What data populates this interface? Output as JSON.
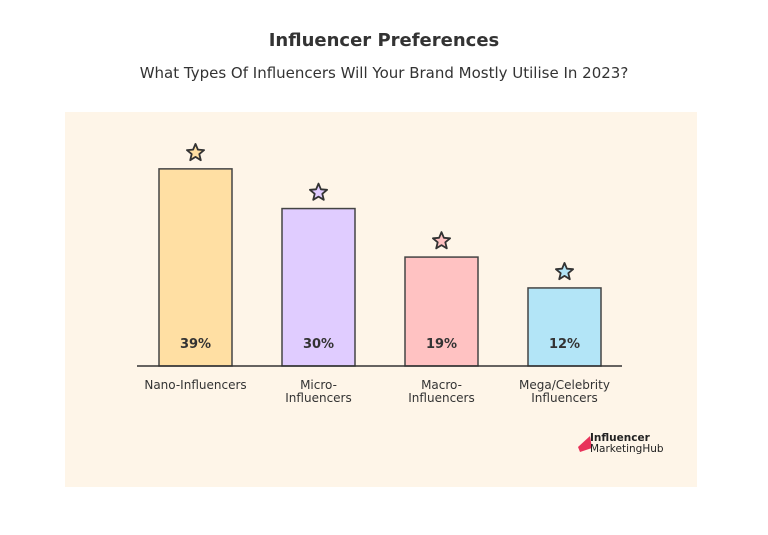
{
  "chart_data": {
    "type": "bar",
    "title": "Influencer Preferences",
    "subtitle": "What Types Of Influencers Will Your Brand Mostly Utilise In 2023?",
    "categories": [
      [
        "Nano-Influencers"
      ],
      [
        "Micro-",
        "Influencers"
      ],
      [
        "Macro-",
        "Influencers"
      ],
      [
        "Mega/Celebrity",
        "Influencers"
      ]
    ],
    "values": [
      39,
      30,
      19,
      12
    ],
    "data_labels": [
      "39%",
      "30%",
      "19%",
      "12%"
    ],
    "colors": [
      "#FFDFA3",
      "#E0CCFF",
      "#FFC2C2",
      "#B3E5F7"
    ],
    "background": "#FEF5E8",
    "marker": "star-icon",
    "grid": false
  },
  "logo": {
    "line1": "Influencer",
    "line2": "MarketingHub",
    "accent": "#E8325A"
  }
}
